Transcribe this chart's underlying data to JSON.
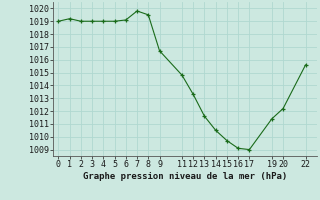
{
  "x": [
    0,
    1,
    2,
    3,
    4,
    5,
    6,
    7,
    8,
    9,
    11,
    12,
    13,
    14,
    15,
    16,
    17,
    19,
    20,
    22
  ],
  "y": [
    1019.0,
    1019.2,
    1019.0,
    1019.0,
    1019.0,
    1019.0,
    1019.1,
    1019.8,
    1019.5,
    1016.7,
    1014.8,
    1013.3,
    1011.6,
    1010.5,
    1009.7,
    1009.1,
    1009.0,
    1011.4,
    1012.2,
    1015.6
  ],
  "xlim": [
    -0.5,
    23
  ],
  "ylim": [
    1008.5,
    1020.5
  ],
  "yticks": [
    1009,
    1010,
    1011,
    1012,
    1013,
    1014,
    1015,
    1016,
    1017,
    1018,
    1019,
    1020
  ],
  "xticks": [
    0,
    1,
    2,
    3,
    4,
    5,
    6,
    7,
    8,
    9,
    11,
    12,
    13,
    14,
    15,
    16,
    17,
    19,
    20,
    22
  ],
  "xlabel": "Graphe pression niveau de la mer (hPa)",
  "line_color": "#1a6b1a",
  "marker": "+",
  "bg_color": "#cce8e0",
  "grid_color": "#b0d8d0",
  "tick_fontsize": 6,
  "xlabel_fontsize": 6.5
}
